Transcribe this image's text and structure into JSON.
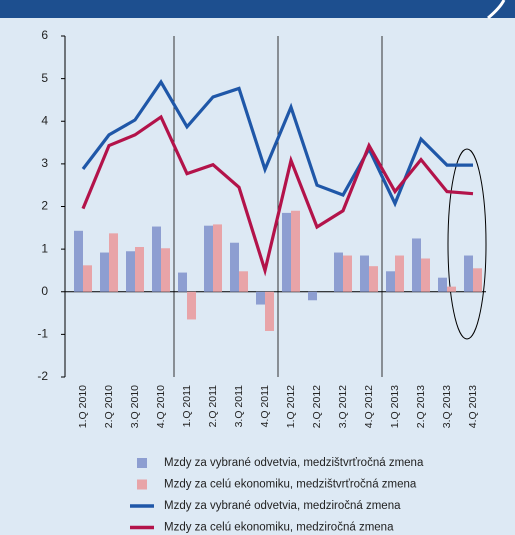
{
  "chart_data": {
    "type": "bar_line",
    "categories": [
      "1.Q 2010",
      "2.Q 2010",
      "3.Q 2010",
      "4.Q 2010",
      "1.Q 2011",
      "2.Q 2011",
      "3.Q 2011",
      "4.Q 2011",
      "1.Q 2012",
      "2.Q 2012",
      "3.Q 2012",
      "4.Q 2012",
      "1.Q 2013",
      "2.Q 2013",
      "3.Q 2013",
      "4.Q 2013"
    ],
    "series": [
      {
        "name": "Mzdy za vybrané odvetvia, medzištvrťročná zmena",
        "type": "bar",
        "color": "#8d9ed1",
        "values": [
          1.43,
          0.92,
          0.95,
          1.53,
          0.45,
          1.55,
          1.15,
          -0.3,
          1.85,
          -0.2,
          0.92,
          0.85,
          0.48,
          1.25,
          0.33,
          0.85
        ]
      },
      {
        "name": "Mzdy za celú ekonomiku, medzištvrťročná zmena",
        "type": "bar",
        "color": "#e8a4a8",
        "values": [
          0.62,
          1.37,
          1.05,
          1.02,
          -0.65,
          1.58,
          0.48,
          -0.92,
          1.9,
          0.0,
          0.85,
          0.6,
          0.85,
          0.78,
          0.12,
          0.55
        ]
      },
      {
        "name": "Mzdy za vybrané odvetvia, medziročná zmena",
        "type": "line",
        "color": "#1f57a8",
        "values": [
          2.88,
          3.68,
          4.03,
          4.92,
          3.87,
          4.57,
          4.77,
          2.87,
          4.33,
          2.5,
          2.27,
          3.35,
          2.07,
          3.58,
          2.97,
          2.97
        ]
      },
      {
        "name": "Mzdy za celú ekonomiku, medziročná zmena",
        "type": "line",
        "color": "#b3134a",
        "values": [
          1.95,
          3.43,
          3.68,
          4.1,
          2.77,
          2.98,
          2.45,
          0.5,
          3.08,
          1.52,
          1.9,
          3.43,
          2.35,
          3.1,
          2.35,
          2.3
        ]
      }
    ],
    "ylim": [
      -2,
      6
    ],
    "yticks": [
      -2,
      -1,
      0,
      1,
      2,
      3,
      4,
      5,
      6
    ],
    "grid": false
  }
}
